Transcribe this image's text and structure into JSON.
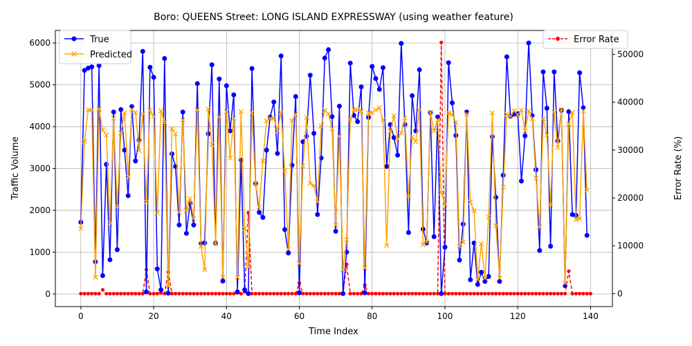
{
  "chart_data": {
    "type": "line",
    "title": "Boro: QUEENS Street: LONG ISLAND EXPRESSWAY (using weather feature)",
    "xlabel": "Time Index",
    "ylabel": "Traffic Volume",
    "y2label": "Error Rate (%)",
    "xlim": [
      -7,
      146
    ],
    "ylim": [
      -300,
      6300
    ],
    "y2lim": [
      -2700,
      55000
    ],
    "x_ticks": [
      0,
      20,
      40,
      60,
      80,
      100,
      120,
      140
    ],
    "y_ticks": [
      0,
      1000,
      2000,
      3000,
      4000,
      5000,
      6000
    ],
    "y2_ticks": [
      0,
      10000,
      20000,
      30000,
      40000,
      50000
    ],
    "grid": true,
    "legend_left": {
      "placement": "upper-left",
      "entries": [
        "True",
        "Predicted"
      ]
    },
    "legend_right": {
      "placement": "upper-right",
      "entries": [
        "Error Rate"
      ]
    },
    "series": [
      {
        "name": "True",
        "axis": "left",
        "color": "#0000ff",
        "marker": "circle",
        "values": [
          1715,
          5345,
          5400,
          5430,
          770,
          5460,
          440,
          3100,
          820,
          4350,
          1060,
          4410,
          3440,
          2350,
          4480,
          3180,
          3680,
          5800,
          50,
          5420,
          5180,
          600,
          100,
          5630,
          20,
          3350,
          3050,
          1650,
          4350,
          1450,
          2170,
          1650,
          5030,
          1200,
          1220,
          3830,
          5480,
          1220,
          5140,
          310,
          4980,
          3900,
          4760,
          50,
          3200,
          100,
          10,
          5390,
          2640,
          1950,
          1830,
          3440,
          4230,
          4590,
          3360,
          5690,
          1540,
          980,
          3080,
          4720,
          30,
          3640,
          3770,
          5230,
          3840,
          1900,
          3250,
          5640,
          5840,
          4240,
          1500,
          4490,
          10,
          1000,
          5520,
          4270,
          4120,
          4950,
          30,
          4220,
          5440,
          5150,
          4890,
          5410,
          3050,
          4050,
          3740,
          3320,
          5990,
          4050,
          1470,
          4740,
          3900,
          5360,
          1550,
          1220,
          4330,
          1370,
          4230,
          10,
          1120,
          5530,
          4570,
          3790,
          810,
          1670,
          4350,
          340,
          1220,
          230,
          520,
          300,
          420,
          3760,
          2310,
          300,
          2840,
          5670,
          4250,
          4300,
          4310,
          2700,
          3780,
          6000,
          4260,
          2970,
          1040,
          5310,
          4440,
          1140,
          5310,
          3660,
          4390,
          200,
          4360,
          1900,
          1880,
          5290,
          4450,
          1400
        ]
      },
      {
        "name": "Predicted",
        "axis": "left",
        "color": "#ffa500",
        "marker": "x",
        "values": [
          1570,
          3650,
          4400,
          4400,
          400,
          4420,
          3920,
          3800,
          1700,
          4200,
          2100,
          3850,
          4330,
          2800,
          4410,
          4340,
          3430,
          4300,
          2200,
          4390,
          4240,
          1940,
          4380,
          4100,
          190,
          3950,
          3820,
          1950,
          4160,
          2000,
          2280,
          1800,
          4400,
          1140,
          580,
          4420,
          3580,
          1200,
          4230,
          400,
          4360,
          3250,
          4200,
          400,
          4360,
          1560,
          650,
          4330,
          2640,
          2080,
          3180,
          4140,
          4200,
          4200,
          3900,
          4350,
          2950,
          1070,
          4140,
          4300,
          730,
          3060,
          4220,
          2640,
          2590,
          2200,
          4010,
          4390,
          4310,
          3950,
          1650,
          3770,
          580,
          1300,
          4160,
          4410,
          4400,
          4370,
          620,
          4330,
          4330,
          4400,
          4450,
          4160,
          1160,
          3890,
          4260,
          3700,
          3850,
          4210,
          2340,
          3750,
          3640,
          4400,
          1180,
          1250,
          4350,
          3900,
          4160,
          2420,
          2150,
          4330,
          4290,
          4100,
          1140,
          1240,
          4300,
          2200,
          1990,
          350,
          1200,
          380,
          1840,
          4330,
          1630,
          380,
          2560,
          4300,
          4250,
          4380,
          4280,
          4400,
          3900,
          4380,
          4190,
          2770,
          1600,
          4190,
          3800,
          2140,
          4340,
          3500,
          4410,
          260,
          4070,
          4340,
          1780,
          1800,
          4380,
          2480
        ]
      },
      {
        "name": "Error Rate",
        "axis": "right",
        "color": "#ff0000",
        "style": "dashed",
        "marker": "circle",
        "values": [
          0,
          0,
          0,
          0,
          0,
          0,
          800,
          0,
          0,
          0,
          0,
          0,
          0,
          0,
          0,
          0,
          0,
          0,
          5000,
          0,
          0,
          0,
          150,
          0,
          4500,
          0,
          0,
          0,
          0,
          0,
          0,
          0,
          0,
          0,
          0,
          0,
          0,
          0,
          0,
          0,
          0,
          0,
          0,
          150,
          0,
          400,
          16900,
          0,
          0,
          0,
          0,
          0,
          0,
          0,
          0,
          0,
          0,
          0,
          0,
          0,
          2200,
          0,
          0,
          0,
          0,
          0,
          0,
          0,
          0,
          0,
          0,
          0,
          0,
          6100,
          0,
          0,
          0,
          0,
          1800,
          0,
          0,
          0,
          0,
          0,
          0,
          0,
          0,
          0,
          0,
          0,
          0,
          0,
          0,
          0,
          0,
          0,
          0,
          0,
          0,
          52500,
          0,
          0,
          0,
          0,
          0,
          0,
          0,
          0,
          0,
          0,
          0,
          0,
          0,
          0,
          0,
          0,
          0,
          0,
          0,
          0,
          0,
          0,
          0,
          0,
          0,
          0,
          0,
          0,
          0,
          0,
          0,
          0,
          0,
          0,
          4700,
          0,
          0,
          0,
          0,
          0,
          0
        ]
      }
    ]
  }
}
